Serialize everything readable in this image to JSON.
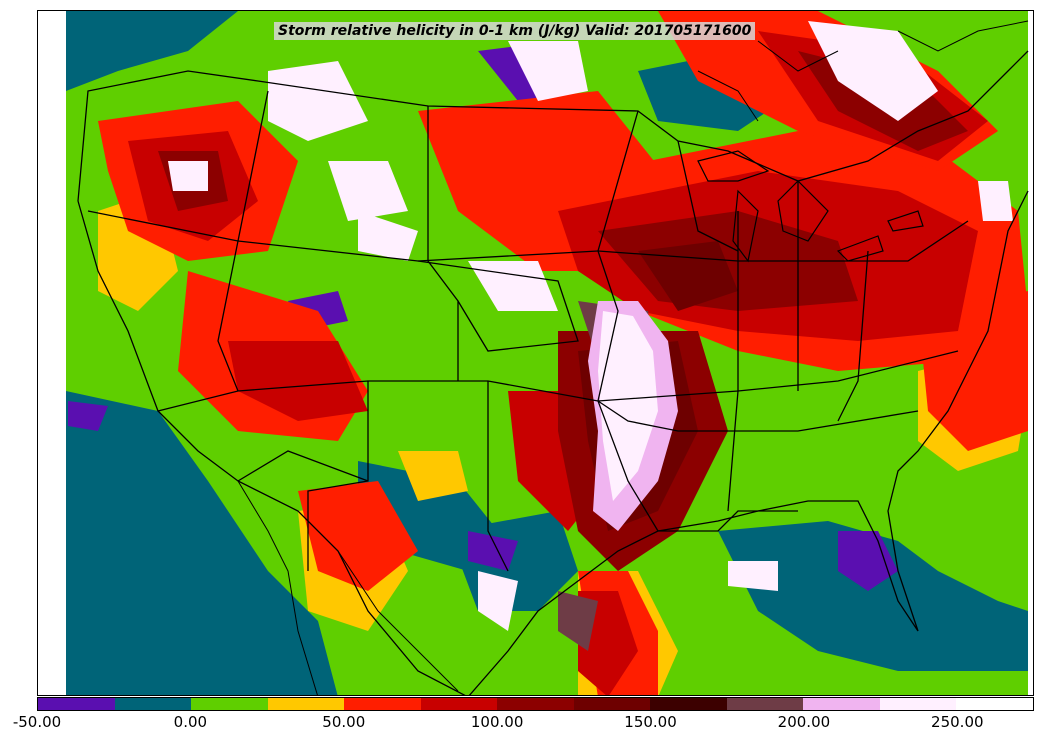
{
  "title": "Storm relative helicity in 0-1 km (J/kg) Valid: 201705171600",
  "colorbar": {
    "min": -50,
    "max": 275,
    "step": 25,
    "colors": [
      "#5a0fb0",
      "#006478",
      "#5fcf00",
      "#ffc800",
      "#ff1e00",
      "#c80000",
      "#8c0000",
      "#6e0000",
      "#3c0000",
      "#6e3c46",
      "#f0b4f0",
      "#fff0ff",
      "#ffffff"
    ],
    "ticks": [
      {
        "value": -50,
        "label": "-50.00"
      },
      {
        "value": 0,
        "label": "0.00"
      },
      {
        "value": 50,
        "label": "50.00"
      },
      {
        "value": 100,
        "label": "100.00"
      },
      {
        "value": 150,
        "label": "150.00"
      },
      {
        "value": 200,
        "label": "200.00"
      },
      {
        "value": 250,
        "label": "250.00"
      }
    ]
  }
}
